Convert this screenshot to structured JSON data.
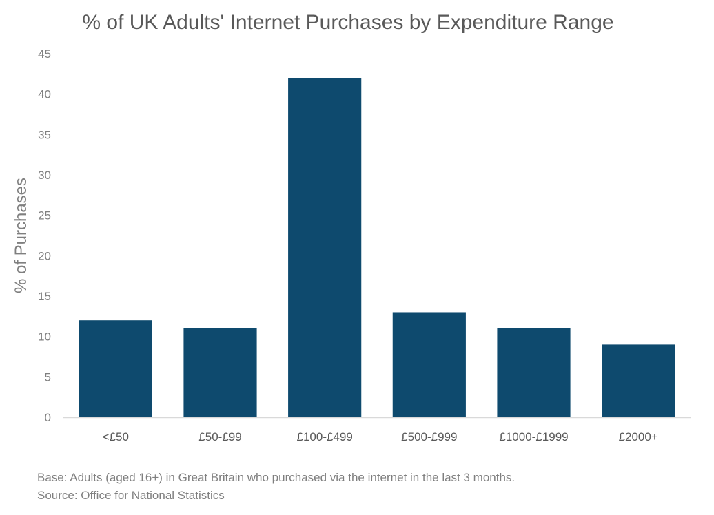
{
  "chart_data": {
    "type": "bar",
    "title": "% of UK Adults' Internet Purchases by Expenditure Range",
    "xlabel": "",
    "ylabel": "% of Purchases",
    "categories": [
      "<£50",
      "£50-£99",
      "£100-£499",
      "£500-£999",
      "£1000-£1999",
      "£2000+"
    ],
    "values": [
      12,
      11,
      42,
      13,
      11,
      9
    ],
    "ylim": [
      0,
      45
    ],
    "yticks": [
      0,
      5,
      10,
      15,
      20,
      25,
      30,
      35,
      40,
      45
    ],
    "grid": false,
    "legend": "none",
    "bar_color": "#0e4a6e"
  },
  "notes": {
    "base": "Base:  Adults (aged 16+) in Great Britain who purchased via the internet in the last 3 months.",
    "source": "Source: Office for National Statistics"
  }
}
